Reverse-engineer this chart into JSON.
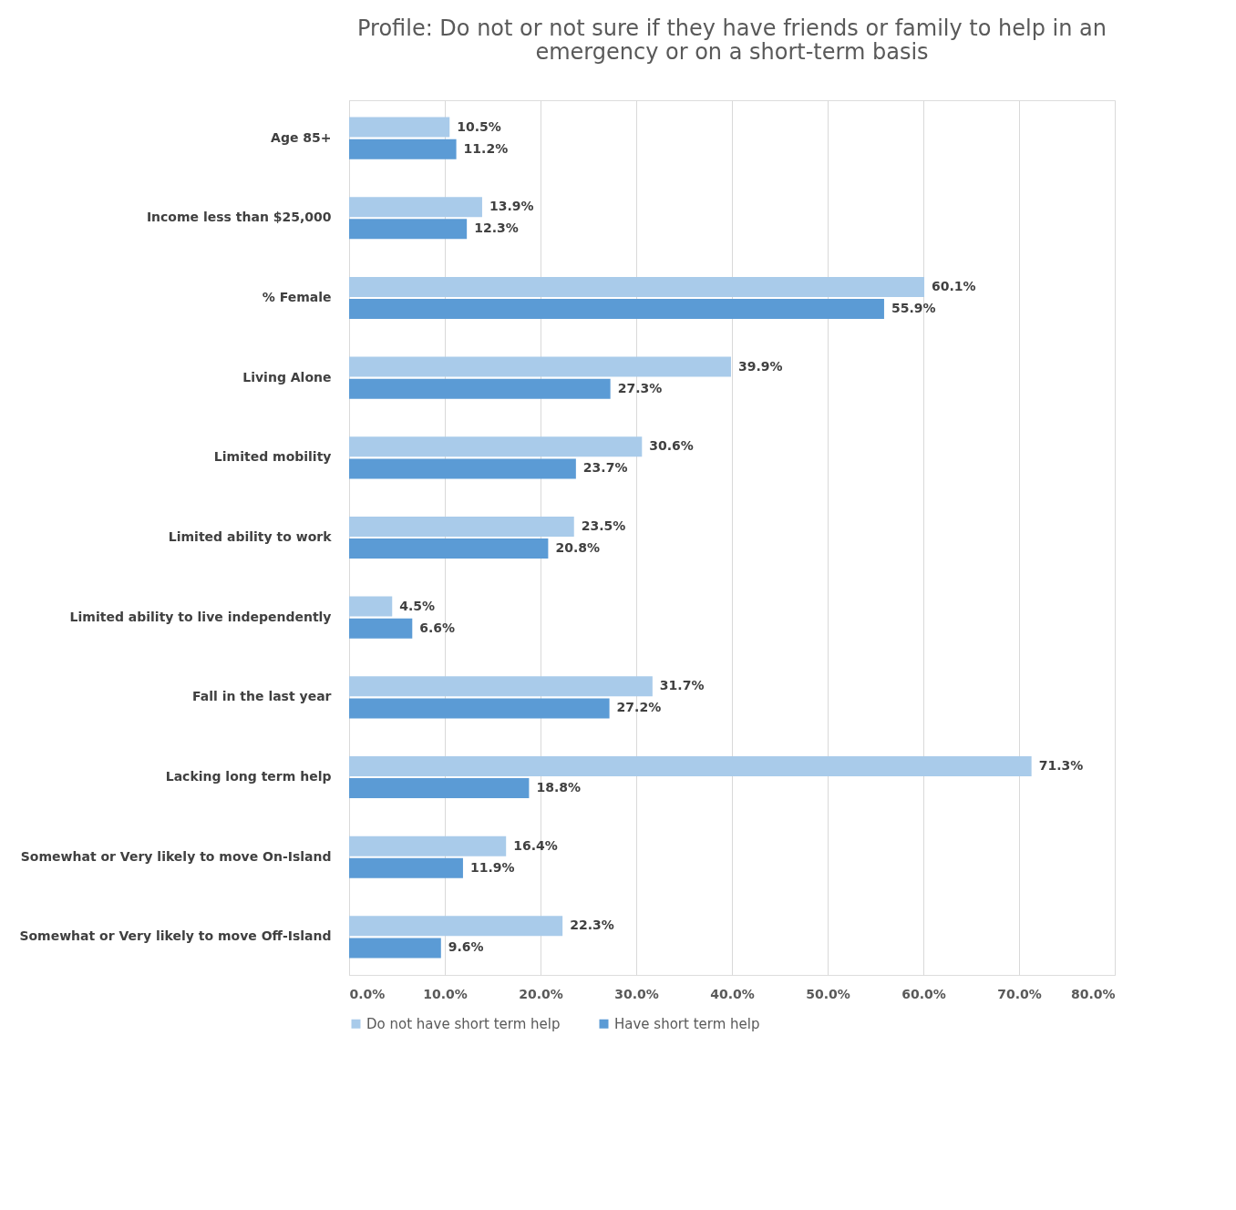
{
  "chart_data": {
    "type": "bar",
    "orientation": "horizontal",
    "title": [
      "Profile: Do not or not sure if they have friends or family to help in an",
      "emergency or on a short-term basis"
    ],
    "categories": [
      "Age 85+",
      "Income less than $25,000",
      "% Female",
      "Living Alone",
      "Limited mobility",
      "Limited ability to work",
      "Limited ability to live independently",
      "Fall in the last year",
      "Lacking long term help",
      "Somewhat or Very likely to move On-Island",
      "Somewhat or Very likely to move Off-Island"
    ],
    "series": [
      {
        "name": "Do not have short term help",
        "color": "#a9cbea",
        "values": [
          10.5,
          13.9,
          60.1,
          39.9,
          30.6,
          23.5,
          4.5,
          31.7,
          71.3,
          16.4,
          22.3
        ],
        "value_labels": [
          "10.5%",
          "13.9%",
          "60.1%",
          "39.9%",
          "30.6%",
          "23.5%",
          "4.5%",
          "31.7%",
          "71.3%",
          "16.4%",
          "22.3%"
        ]
      },
      {
        "name": "Have short term help",
        "color": "#5b9bd5",
        "values": [
          11.2,
          12.3,
          55.9,
          27.3,
          23.7,
          20.8,
          6.6,
          27.2,
          18.8,
          11.9,
          9.6
        ],
        "value_labels": [
          "11.2%",
          "12.3%",
          "55.9%",
          "27.3%",
          "23.7%",
          "20.8%",
          "6.6%",
          "27.2%",
          "18.8%",
          "11.9%",
          "9.6%"
        ]
      }
    ],
    "xlim": [
      0,
      80
    ],
    "xticks": [
      {
        "value": 0,
        "label": "0.0%"
      },
      {
        "value": 10,
        "label": "10.0%"
      },
      {
        "value": 20,
        "label": "20.0%"
      },
      {
        "value": 30,
        "label": "30.0%"
      },
      {
        "value": 40,
        "label": "40.0%"
      },
      {
        "value": 50,
        "label": "50.0%"
      },
      {
        "value": 60,
        "label": "60.0%"
      },
      {
        "value": 70,
        "label": "70.0%"
      },
      {
        "value": 80,
        "label": "80.0%"
      }
    ],
    "grid": "x",
    "legend": "bottom"
  }
}
